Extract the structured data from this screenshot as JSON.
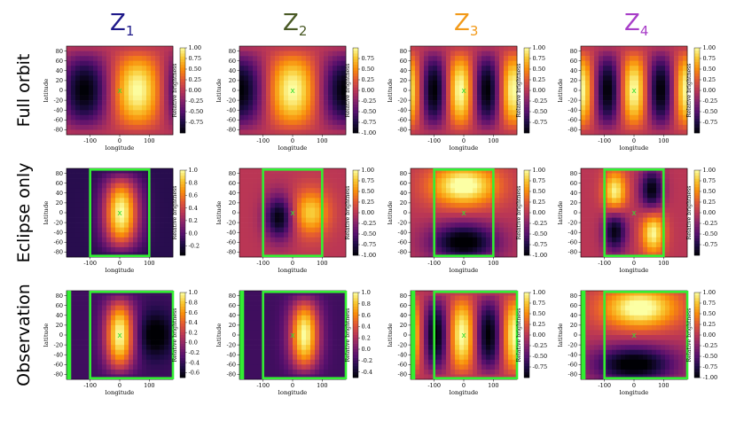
{
  "figure": {
    "columns": [
      {
        "label": "Z",
        "sub": "1",
        "color": "#1f1a8a"
      },
      {
        "label": "Z",
        "sub": "2",
        "color": "#4a5a26"
      },
      {
        "label": "Z",
        "sub": "3",
        "color": "#f29a1a"
      },
      {
        "label": "Z",
        "sub": "4",
        "color": "#a83ec8"
      }
    ],
    "rows": [
      "Full orbit",
      "Eclipse only",
      "Observation"
    ],
    "xlabel": "longitude",
    "ylabel": "latitude",
    "colorbar_label": "Relative brightness",
    "marker": "x",
    "colors": {
      "box": "#33ee33",
      "marker": "#33dd33"
    }
  },
  "chart_data": [
    {
      "type": "heatmap",
      "row": "Full orbit",
      "col": "Z1",
      "xticks": [
        "-100",
        "0",
        "100"
      ],
      "yticks": [
        "80",
        "60",
        "40",
        "20",
        "0",
        "-20",
        "-40",
        "-60",
        "-80"
      ],
      "cbar_ticks": [
        "1.00",
        "0.75",
        "0.50",
        "0.25",
        "0.00",
        "-0.25",
        "-0.50",
        "-0.75"
      ],
      "cbar_range": [
        -1,
        1
      ],
      "mode": 1,
      "boxes": []
    },
    {
      "type": "heatmap",
      "row": "Full orbit",
      "col": "Z2",
      "xticks": [
        "-100",
        "0",
        "100"
      ],
      "yticks": [
        "80",
        "60",
        "40",
        "20",
        "0",
        "-20",
        "-40",
        "-60",
        "-80"
      ],
      "cbar_ticks": [
        "0.75",
        "0.50",
        "0.25",
        "0.00",
        "-0.25",
        "-0.50",
        "-0.75",
        "-1.00"
      ],
      "cbar_range": [
        -1,
        1
      ],
      "mode": 2,
      "boxes": []
    },
    {
      "type": "heatmap",
      "row": "Full orbit",
      "col": "Z3",
      "xticks": [
        "-100",
        "0",
        "100"
      ],
      "yticks": [
        "80",
        "60",
        "40",
        "20",
        "0",
        "-20",
        "-40",
        "-60",
        "-80"
      ],
      "cbar_ticks": [
        "1.00",
        "0.75",
        "0.50",
        "0.25",
        "0.00",
        "-0.25",
        "-0.50",
        "-0.75"
      ],
      "cbar_range": [
        -1,
        1
      ],
      "mode": 3,
      "boxes": []
    },
    {
      "type": "heatmap",
      "row": "Full orbit",
      "col": "Z4",
      "xticks": [
        "-100",
        "0",
        "100"
      ],
      "yticks": [
        "80",
        "60",
        "40",
        "20",
        "0",
        "-20",
        "-40",
        "-60",
        "-80"
      ],
      "cbar_ticks": [
        "1.00",
        "0.75",
        "0.50",
        "0.25",
        "0.00",
        "-0.25",
        "-0.50",
        "-0.75"
      ],
      "cbar_range": [
        -1,
        1
      ],
      "mode": 4,
      "boxes": []
    },
    {
      "type": "heatmap",
      "row": "Eclipse only",
      "col": "Z1",
      "xticks": [
        "-100",
        "0",
        "100"
      ],
      "yticks": [
        "80",
        "60",
        "40",
        "20",
        "0",
        "-20",
        "-40",
        "-60",
        "-80"
      ],
      "cbar_ticks": [
        "1.0",
        "0.8",
        "0.6",
        "0.4",
        "0.2",
        "0.0",
        "-0.2"
      ],
      "cbar_range": [
        -0.35,
        1
      ],
      "mode": 5,
      "boxes": [
        [
          -100,
          100
        ]
      ]
    },
    {
      "type": "heatmap",
      "row": "Eclipse only",
      "col": "Z2",
      "xticks": [
        "-100",
        "0",
        "100"
      ],
      "yticks": [
        "80",
        "60",
        "40",
        "20",
        "0",
        "-20",
        "-40",
        "-60",
        "-80"
      ],
      "cbar_ticks": [
        "1.00",
        "0.75",
        "0.50",
        "0.25",
        "0.00",
        "-0.25",
        "-0.50",
        "-0.75",
        "-1.00"
      ],
      "cbar_range": [
        -1,
        1
      ],
      "mode": 6,
      "boxes": [
        [
          -100,
          100
        ]
      ]
    },
    {
      "type": "heatmap",
      "row": "Eclipse only",
      "col": "Z3",
      "xticks": [
        "-100",
        "0",
        "100"
      ],
      "yticks": [
        "80",
        "60",
        "40",
        "20",
        "0",
        "-20",
        "-40",
        "-60",
        "-80"
      ],
      "cbar_ticks": [
        "1.00",
        "0.75",
        "0.50",
        "0.25",
        "0.00",
        "-0.25",
        "-0.50",
        "-0.75",
        "-1.00"
      ],
      "cbar_range": [
        -1,
        1
      ],
      "mode": 7,
      "boxes": [
        [
          -100,
          100
        ]
      ]
    },
    {
      "type": "heatmap",
      "row": "Eclipse only",
      "col": "Z4",
      "xticks": [
        "-100",
        "0",
        "100"
      ],
      "yticks": [
        "80",
        "60",
        "40",
        "20",
        "0",
        "-20",
        "-40",
        "-60",
        "-80"
      ],
      "cbar_ticks": [
        "1.00",
        "0.75",
        "0.50",
        "0.25",
        "0.00",
        "-0.25",
        "-0.50",
        "-0.75"
      ],
      "cbar_range": [
        -1,
        1
      ],
      "mode": 8,
      "boxes": [
        [
          -100,
          100
        ]
      ]
    },
    {
      "type": "heatmap",
      "row": "Observation",
      "col": "Z1",
      "xticks": [
        "-100",
        "0",
        "100"
      ],
      "yticks": [
        "80",
        "60",
        "40",
        "20",
        "0",
        "-20",
        "-40",
        "-60",
        "-80"
      ],
      "cbar_ticks": [
        "1.0",
        "0.8",
        "0.6",
        "0.4",
        "0.2",
        "0.0",
        "-0.2",
        "-0.4",
        "-0.6"
      ],
      "cbar_range": [
        -0.7,
        1
      ],
      "mode": 9,
      "boxes": [
        [
          -100,
          180
        ],
        [
          -175,
          -168
        ]
      ]
    },
    {
      "type": "heatmap",
      "row": "Observation",
      "col": "Z2",
      "xticks": [
        "-100",
        "0",
        "100"
      ],
      "yticks": [
        "80",
        "60",
        "40",
        "20",
        "0",
        "-20",
        "-40",
        "-60",
        "-80"
      ],
      "cbar_ticks": [
        "1.0",
        "0.8",
        "0.6",
        "0.4",
        "0.2",
        "0.0",
        "-0.2",
        "-0.4"
      ],
      "cbar_range": [
        -0.5,
        1
      ],
      "mode": 10,
      "boxes": [
        [
          -100,
          180
        ],
        [
          -175,
          -168
        ]
      ]
    },
    {
      "type": "heatmap",
      "row": "Observation",
      "col": "Z3",
      "xticks": [
        "-100",
        "0",
        "100"
      ],
      "yticks": [
        "80",
        "60",
        "40",
        "20",
        "0",
        "-20",
        "-40",
        "-60",
        "-80"
      ],
      "cbar_ticks": [
        "1.00",
        "0.75",
        "0.50",
        "0.25",
        "0.00",
        "-0.25",
        "-0.50",
        "-0.75"
      ],
      "cbar_range": [
        -1,
        1
      ],
      "mode": 11,
      "boxes": [
        [
          -100,
          180
        ],
        [
          -175,
          -168
        ]
      ]
    },
    {
      "type": "heatmap",
      "row": "Observation",
      "col": "Z4",
      "xticks": [
        "-100",
        "0",
        "100"
      ],
      "yticks": [
        "80",
        "60",
        "40",
        "20",
        "0",
        "-20",
        "-40",
        "-60",
        "-80"
      ],
      "cbar_ticks": [
        "1.00",
        "0.75",
        "0.50",
        "0.25",
        "0.00",
        "-0.25",
        "-0.50",
        "-0.75",
        "-1.00"
      ],
      "cbar_range": [
        -1,
        1
      ],
      "mode": 12,
      "boxes": [
        [
          -100,
          180
        ],
        [
          -175,
          -168
        ]
      ]
    }
  ]
}
